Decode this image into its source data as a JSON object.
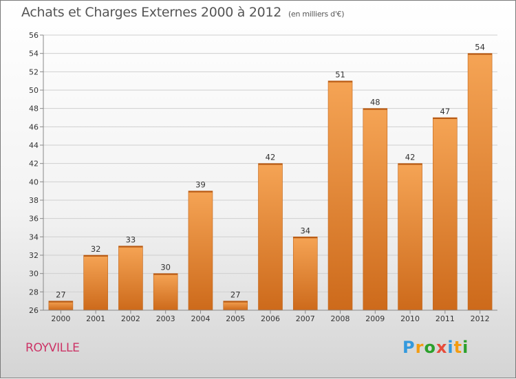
{
  "title": "Achats et Charges Externes 2000 à 2012",
  "unit_note": "(en milliers d'€)",
  "place": "ROYVILLE",
  "logo": {
    "letters": [
      "P",
      "r",
      "o",
      "x",
      "i",
      "t",
      "i"
    ],
    "colors": [
      "#3399dd",
      "#f39c12",
      "#2ca02c",
      "#e74c3c",
      "#3399dd",
      "#f39c12",
      "#2ca02c"
    ]
  },
  "colors": {
    "bar_light": "#f5a455",
    "bar_dark": "#cd6a1b",
    "grid": "#cfcfcf",
    "axis_text": "#333333"
  },
  "chart_data": {
    "type": "bar",
    "categories": [
      "2000",
      "2001",
      "2002",
      "2003",
      "2004",
      "2005",
      "2006",
      "2007",
      "2008",
      "2009",
      "2010",
      "2011",
      "2012"
    ],
    "values": [
      27,
      32,
      33,
      30,
      39,
      27,
      42,
      34,
      51,
      48,
      42,
      47,
      54
    ],
    "data_labels": [
      "27",
      "32",
      "33",
      "30",
      "39",
      "27",
      "42",
      "34",
      "51",
      "48",
      "42",
      "47",
      "54"
    ],
    "ylim": [
      26,
      56
    ],
    "yticks": [
      26,
      28,
      30,
      32,
      34,
      36,
      38,
      40,
      42,
      44,
      46,
      48,
      50,
      52,
      54,
      56
    ],
    "ytick_labels": [
      "26",
      "28",
      "30",
      "32",
      "34",
      "36",
      "38",
      "40",
      "42",
      "44",
      "46",
      "48",
      "50",
      "52",
      "54",
      "56"
    ],
    "grid": true,
    "xlabel": "",
    "ylabel": ""
  }
}
